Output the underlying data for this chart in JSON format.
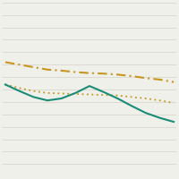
{
  "x_points": [
    0,
    1,
    2,
    3,
    4,
    5,
    6,
    7,
    8,
    9,
    10,
    11,
    12
  ],
  "line_dash_dot": [
    0.68,
    0.675,
    0.67,
    0.665,
    0.663,
    0.66,
    0.658,
    0.657,
    0.655,
    0.652,
    0.648,
    0.645,
    0.64
  ],
  "line_dotted": [
    0.635,
    0.628,
    0.622,
    0.618,
    0.617,
    0.616,
    0.615,
    0.614,
    0.613,
    0.61,
    0.607,
    0.603,
    0.598
  ],
  "line_solid": [
    0.635,
    0.622,
    0.61,
    0.603,
    0.607,
    0.618,
    0.632,
    0.62,
    0.607,
    0.592,
    0.578,
    0.568,
    0.56
  ],
  "color_dash_dot": "#C8961E",
  "color_dotted": "#C8961E",
  "color_solid": "#1A8C78",
  "bg_color": "#F0F0EB",
  "grid_color": "#D8D8D0",
  "ylim": [
    0.45,
    0.8
  ],
  "xlim": [
    -0.2,
    12.2
  ]
}
